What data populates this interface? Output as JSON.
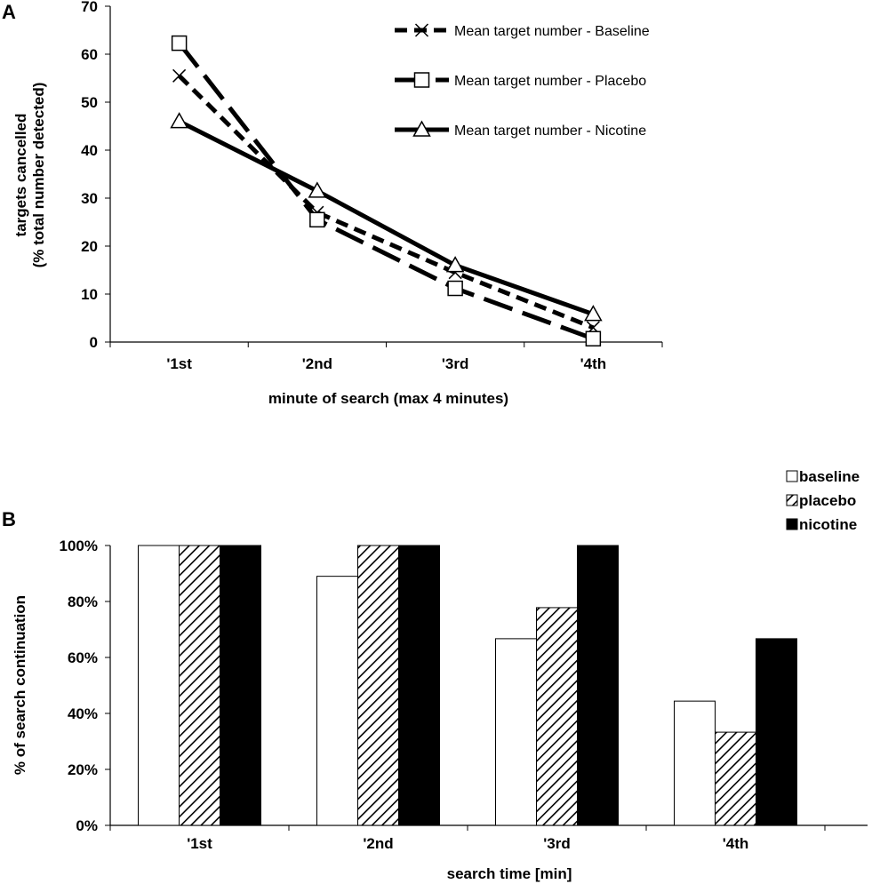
{
  "chart_data": [
    {
      "panel": "A",
      "type": "line",
      "categories": [
        "'1st",
        "'2nd",
        "'3rd",
        "'4th"
      ],
      "series": [
        {
          "name": "Mean target number - Baseline",
          "style": "short-dash",
          "marker": "x",
          "values": [
            55.5,
            27,
            14.5,
            3
          ]
        },
        {
          "name": "Mean target number - Placebo",
          "style": "long-dash",
          "marker": "square",
          "values": [
            62.3,
            25.5,
            11.2,
            0.7
          ]
        },
        {
          "name": "Mean target number - Nicotine",
          "style": "solid",
          "marker": "triangle",
          "values": [
            46,
            31.5,
            16,
            5.8
          ]
        }
      ],
      "ylim": [
        0,
        70
      ],
      "yticks": [
        0,
        10,
        20,
        30,
        40,
        50,
        60,
        70
      ],
      "ylabel_line1": "targets cancelled",
      "ylabel_line2": "(% total number detected)",
      "xlabel": "minute of search (max 4 minutes)",
      "legend_position": "top-right"
    },
    {
      "panel": "B",
      "type": "bar",
      "categories": [
        "'1st",
        "'2nd",
        "'3rd",
        "'4th"
      ],
      "series": [
        {
          "name": "baseline",
          "fill": "white",
          "values": [
            100,
            89,
            66.7,
            44.4
          ]
        },
        {
          "name": "placebo",
          "fill": "hatched",
          "values": [
            100,
            100,
            77.8,
            33.3
          ]
        },
        {
          "name": "nicotine",
          "fill": "black",
          "values": [
            100,
            100,
            100,
            66.7
          ]
        }
      ],
      "ylim": [
        0,
        100
      ],
      "yticks": [
        "0%",
        "20%",
        "40%",
        "60%",
        "80%",
        "100%"
      ],
      "ylabel": "% of search continuation",
      "xlabel": "search time [min]",
      "legend_position": "top-right"
    }
  ]
}
